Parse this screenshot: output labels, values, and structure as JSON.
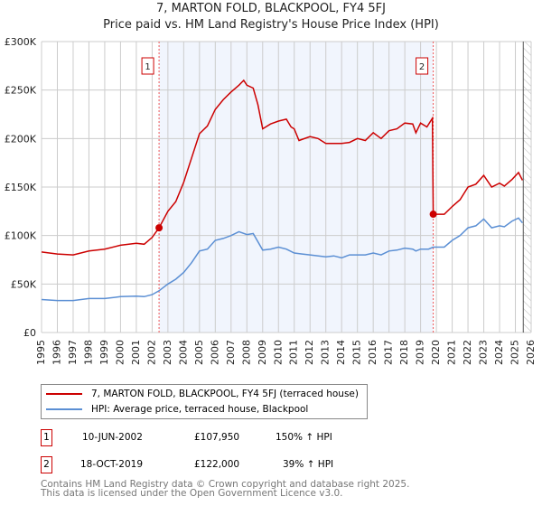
{
  "chart_data": {
    "type": "line",
    "title": "7, MARTON FOLD, BLACKPOOL, FY4 5FJ",
    "subtitle": "Price paid vs. HM Land Registry's House Price Index (HPI)",
    "xlim": [
      1995,
      2026
    ],
    "ylim": [
      0,
      300000
    ],
    "x_ticks": [
      "1995",
      "1996",
      "1997",
      "1998",
      "1999",
      "2000",
      "2001",
      "2002",
      "2003",
      "2004",
      "2005",
      "2006",
      "2007",
      "2008",
      "2009",
      "2010",
      "2011",
      "2012",
      "2013",
      "2014",
      "2015",
      "2016",
      "2017",
      "2018",
      "2019",
      "2020",
      "2021",
      "2022",
      "2023",
      "2024",
      "2025",
      "2026"
    ],
    "y_ticks": [
      {
        "v": 0,
        "label": "£0"
      },
      {
        "v": 50000,
        "label": "£50K"
      },
      {
        "v": 100000,
        "label": "£100K"
      },
      {
        "v": 150000,
        "label": "£150K"
      },
      {
        "v": 200000,
        "label": "£200K"
      },
      {
        "v": 250000,
        "label": "£250K"
      },
      {
        "v": 300000,
        "label": "£300K"
      }
    ],
    "grid": true,
    "shaded_range": [
      2002.44,
      2019.8
    ],
    "hatched_from": 2025.5,
    "series": [
      {
        "name": "7, MARTON FOLD, BLACKPOOL, FY4 5FJ (terraced house)",
        "color": "#cc0000",
        "x": [
          1995,
          1996,
          1997,
          1998,
          1999,
          2000,
          2001,
          2001.5,
          2002,
          2002.44,
          2003,
          2003.5,
          2004,
          2004.5,
          2005,
          2005.5,
          2006,
          2006.5,
          2007,
          2007.5,
          2007.8,
          2008,
          2008.4,
          2008.7,
          2009,
          2009.5,
          2010,
          2010.5,
          2010.8,
          2011,
          2011.3,
          2012,
          2012.5,
          2013,
          2013.5,
          2014,
          2014.5,
          2015,
          2015.5,
          2016,
          2016.5,
          2017,
          2017.5,
          2018,
          2018.5,
          2018.7,
          2019,
          2019.4,
          2019.75,
          2019.8,
          2020.5,
          2021,
          2021.5,
          2022,
          2022.5,
          2023,
          2023.5,
          2024,
          2024.3,
          2024.8,
          2025.2,
          2025.45
        ],
        "values": [
          83000,
          81000,
          80000,
          84000,
          86000,
          90000,
          92000,
          91000,
          98000,
          107950,
          125000,
          135000,
          155000,
          180000,
          205000,
          213000,
          230000,
          240000,
          248000,
          255000,
          260000,
          255000,
          252000,
          235000,
          210000,
          215000,
          218000,
          220000,
          212000,
          210000,
          198000,
          202000,
          200000,
          195000,
          195000,
          195000,
          196000,
          200000,
          198000,
          206000,
          200000,
          208000,
          210000,
          216000,
          215000,
          206000,
          216000,
          212000,
          221000,
          122000,
          122000,
          130000,
          137000,
          150000,
          153000,
          162000,
          150000,
          154000,
          151000,
          158000,
          165000,
          157000
        ]
      },
      {
        "name": "HPI: Average price, terraced house, Blackpool",
        "color": "#5b8fd4",
        "x": [
          1995,
          1996,
          1997,
          1998,
          1999,
          2000,
          2001,
          2001.5,
          2002,
          2002.44,
          2003,
          2003.5,
          2004,
          2004.5,
          2005,
          2005.5,
          2006,
          2006.5,
          2007,
          2007.5,
          2008,
          2008.4,
          2009,
          2009.5,
          2010,
          2010.5,
          2011,
          2011.5,
          2012,
          2013,
          2013.5,
          2014,
          2014.5,
          2015,
          2015.5,
          2016,
          2016.5,
          2017,
          2017.5,
          2018,
          2018.5,
          2018.7,
          2019,
          2019.5,
          2019.8,
          2020.5,
          2021,
          2021.5,
          2022,
          2022.5,
          2023,
          2023.5,
          2024,
          2024.3,
          2024.8,
          2025.2,
          2025.45
        ],
        "values": [
          34000,
          33000,
          33000,
          35000,
          35000,
          37000,
          37500,
          37000,
          39000,
          43000,
          50000,
          55000,
          62000,
          72000,
          84000,
          86000,
          95000,
          97000,
          100000,
          104000,
          101000,
          102000,
          85000,
          86000,
          88000,
          86000,
          82000,
          81000,
          80000,
          78000,
          79000,
          77000,
          80000,
          80000,
          80000,
          82000,
          80000,
          84000,
          85000,
          87000,
          86000,
          84000,
          86000,
          86000,
          88000,
          88000,
          95000,
          100000,
          108000,
          110000,
          117000,
          108000,
          110000,
          109000,
          115000,
          118000,
          113000
        ]
      }
    ],
    "markers": [
      {
        "label": "1",
        "x": 2002.44,
        "value": 107950
      },
      {
        "label": "2",
        "x": 2019.8,
        "value": 122000
      }
    ]
  },
  "legend": [
    {
      "label": "7, MARTON FOLD, BLACKPOOL, FY4 5FJ (terraced house)",
      "color": "#cc0000"
    },
    {
      "label": "HPI: Average price, terraced house, Blackpool",
      "color": "#5b8fd4"
    }
  ],
  "sales": [
    {
      "num": "1",
      "date": "10-JUN-2002",
      "price": "£107,950",
      "hpi": "150% ↑ HPI"
    },
    {
      "num": "2",
      "date": "18-OCT-2019",
      "price": "£122,000",
      "hpi": "39% ↑ HPI"
    }
  ],
  "footer": {
    "line1": "Contains HM Land Registry data © Crown copyright and database right 2025.",
    "line2": "This data is licensed under the Open Government Licence v3.0."
  }
}
